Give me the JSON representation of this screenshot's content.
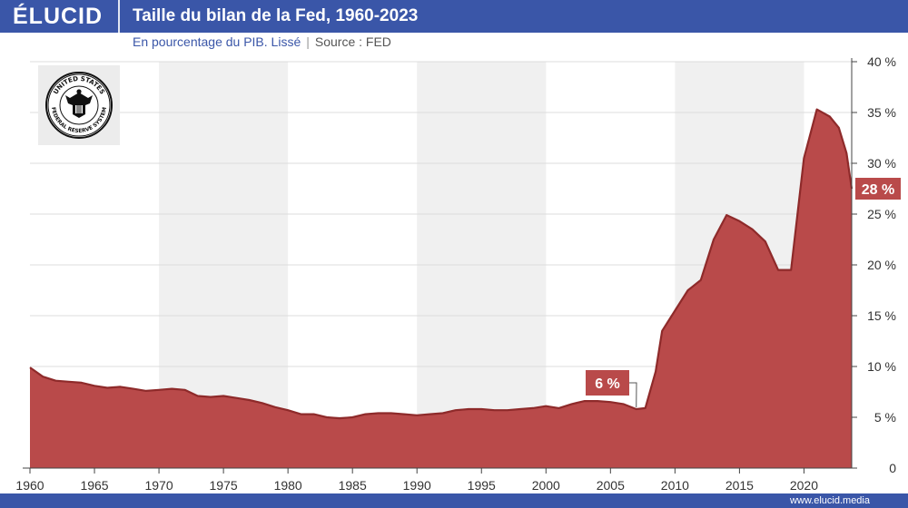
{
  "header": {
    "brand": "ÉLUCID",
    "title": "Taille du bilan de la Fed, 1960-2023",
    "subtitle": "En pourcentage du PIB. Lissé",
    "separator": "|",
    "source": "Source : FED"
  },
  "footer": {
    "url": "www.elucid.media"
  },
  "logo": {
    "icon": "federal-reserve-seal-icon",
    "text_top": "UNITED STATES",
    "text_bottom": "FEDERAL RESERVE SYSTEM"
  },
  "colors": {
    "brand_blue": "#3a56a8",
    "area_fill": "#b94a4a",
    "area_stroke": "#8e2a2a",
    "label_bg": "#b94a4a"
  },
  "chart_data": {
    "type": "area",
    "title": "Taille du bilan de la Fed, 1960-2023",
    "subtitle": "En pourcentage du PIB. Lissé",
    "xlabel": "",
    "ylabel": "",
    "xlim": [
      1960,
      2023.7
    ],
    "ylim": [
      0,
      40
    ],
    "x_ticks": [
      1960,
      1965,
      1970,
      1975,
      1980,
      1985,
      1990,
      1995,
      2000,
      2005,
      2010,
      2015,
      2020
    ],
    "y_ticks": [
      0,
      5,
      10,
      15,
      20,
      25,
      30,
      35,
      40
    ],
    "y_tick_labels": [
      "0",
      "5 %",
      "10 %",
      "15 %",
      "20 %",
      "25 %",
      "30 %",
      "35 %",
      "40 %"
    ],
    "grid": true,
    "series": [
      {
        "x": [
          1960,
          1961,
          1962,
          1963,
          1964,
          1965,
          1966,
          1967,
          1968,
          1969,
          1970,
          1971,
          1972,
          1973,
          1974,
          1975,
          1976,
          1977,
          1978,
          1979,
          1980,
          1981,
          1982,
          1983,
          1984,
          1985,
          1986,
          1987,
          1988,
          1989,
          1990,
          1991,
          1992,
          1993,
          1994,
          1995,
          1996,
          1997,
          1998,
          1999,
          2000,
          2001,
          2002,
          2003,
          2004,
          2005,
          2006,
          2007,
          2007.7,
          2008.5,
          2009,
          2010,
          2011,
          2012,
          2013,
          2014,
          2015,
          2016,
          2017,
          2018,
          2019,
          2020,
          2021,
          2022,
          2022.7,
          2023.3,
          2023.7
        ],
        "y": [
          9.9,
          9.0,
          8.6,
          8.5,
          8.4,
          8.1,
          7.9,
          8.0,
          7.8,
          7.6,
          7.7,
          7.8,
          7.7,
          7.1,
          7.0,
          7.1,
          6.9,
          6.7,
          6.4,
          6.0,
          5.7,
          5.3,
          5.3,
          5.0,
          4.9,
          5.0,
          5.3,
          5.4,
          5.4,
          5.3,
          5.2,
          5.3,
          5.4,
          5.7,
          5.8,
          5.8,
          5.7,
          5.7,
          5.8,
          5.9,
          6.1,
          5.9,
          6.3,
          6.6,
          6.6,
          6.5,
          6.3,
          5.8,
          5.9,
          9.5,
          13.5,
          15.5,
          17.5,
          18.5,
          22.5,
          24.9,
          24.3,
          23.5,
          22.3,
          19.5,
          19.5,
          30.5,
          35.3,
          34.6,
          33.5,
          31.0,
          27.5
        ]
      }
    ],
    "annotations": [
      {
        "text": "6 %",
        "x": 2007,
        "y": 5.8
      },
      {
        "text": "28 %",
        "x": 2023.7,
        "y": 27.5
      }
    ]
  }
}
